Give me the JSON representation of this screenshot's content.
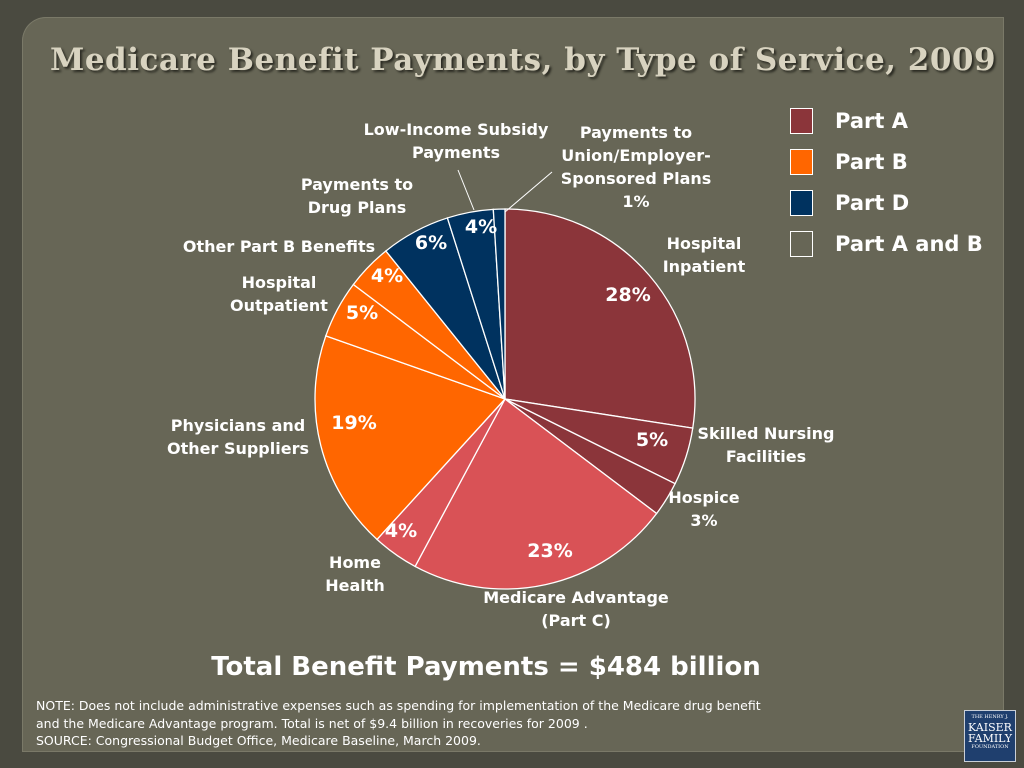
{
  "title": "Medicare Benefit Payments, by Type of Service, 2009",
  "total": "Total Benefit Payments = $484 billion",
  "notes": [
    "NOTE: Does not include administrative expenses such as spending for implementation of the Medicare drug benefit",
    "and the Medicare Advantage program.  Total is net of $9.4 billion in recoveries for 2009 .",
    "SOURCE: Congressional Budget Office, Medicare Baseline, March 2009."
  ],
  "logo": {
    "line1": "THE HENRY J.",
    "line2": "KAISER",
    "line3": "FAMILY",
    "line4": "FOUNDATION"
  },
  "legend": [
    {
      "label": "Part A",
      "color": "#8b353a"
    },
    {
      "label": "Part B",
      "color": "#ff6600"
    },
    {
      "label": "Part D",
      "color": "#00325f"
    },
    {
      "label": "Part A and B",
      "color": "#676656"
    }
  ],
  "chart_data": {
    "type": "pie",
    "slices": [
      {
        "label": [
          "Hospital",
          "Inpatient"
        ],
        "value": 28,
        "value_label": "28%",
        "part": "Part A",
        "color": "#8b353a"
      },
      {
        "label": [
          "Skilled Nursing",
          "Facilities"
        ],
        "value": 5,
        "value_label": "5%",
        "part": "Part A",
        "color": "#8b353a"
      },
      {
        "label": [
          "Hospice",
          "3%"
        ],
        "value": 3,
        "value_label": "",
        "part": "Part A",
        "color": "#8b353a"
      },
      {
        "label": [
          "Medicare Advantage",
          "(Part C)"
        ],
        "value": 23,
        "value_label": "23%",
        "part": "Part A and B",
        "color": "#d95256"
      },
      {
        "label": [
          "Home",
          "Health"
        ],
        "value": 4,
        "value_label": "4%",
        "part": "Part A and B",
        "color": "#d95256"
      },
      {
        "label": [
          "Physicians and",
          "Other Suppliers"
        ],
        "value": 19,
        "value_label": "19%",
        "part": "Part B",
        "color": "#ff6600"
      },
      {
        "label": [
          "Hospital",
          "Outpatient"
        ],
        "value": 5,
        "value_label": "5%",
        "part": "Part B",
        "color": "#ff6600"
      },
      {
        "label": [
          "Other Part B Benefits"
        ],
        "value": 4,
        "value_label": "4%",
        "part": "Part B",
        "color": "#ff6600"
      },
      {
        "label": [
          "Payments to",
          "Drug Plans"
        ],
        "value": 6,
        "value_label": "6%",
        "part": "Part D",
        "color": "#00325f"
      },
      {
        "label": [
          "Low-Income Subsidy",
          "Payments"
        ],
        "value": 4,
        "value_label": "4%",
        "part": "Part D",
        "color": "#00325f"
      },
      {
        "label": [
          "Payments to",
          "Union/Employer-",
          "Sponsored Plans",
          "1%"
        ],
        "value": 1,
        "value_label": "",
        "part": "Part D",
        "color": "#00325f"
      }
    ]
  }
}
